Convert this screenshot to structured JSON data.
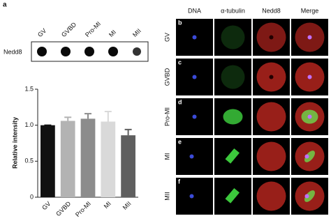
{
  "panel_label": "a",
  "blot": {
    "row_label": "Nedd8",
    "lanes": [
      "GV",
      "GVBD",
      "Pro-MI",
      "MI",
      "MII"
    ]
  },
  "chart_data": {
    "type": "bar",
    "ylabel": "Relative intensity",
    "categories": [
      "GV",
      "GVBD",
      "Pro-MI",
      "MI",
      "MII"
    ],
    "values": [
      1.0,
      1.06,
      1.09,
      1.05,
      0.86
    ],
    "errors": [
      0,
      0.05,
      0.07,
      0.14,
      0.08
    ],
    "colors": [
      "#111111",
      "#b3b3b3",
      "#8c8c8c",
      "#d9d9d9",
      "#5f5f5f"
    ],
    "ylim": [
      0,
      1.5
    ],
    "yticks": [
      0,
      0.5,
      {
        "value": 1,
        "label": "1.0"
      },
      1.5
    ]
  },
  "microscopy": {
    "columns": [
      "DNA",
      "α-tubulin",
      "Nedd8",
      "Merge"
    ],
    "rows": [
      {
        "letter": "b",
        "label": "GV"
      },
      {
        "letter": "c",
        "label": "GVBD"
      },
      {
        "letter": "d",
        "label": "Pro-MI"
      },
      {
        "letter": "e",
        "label": "MI"
      },
      {
        "letter": "f",
        "label": "MII"
      }
    ]
  }
}
